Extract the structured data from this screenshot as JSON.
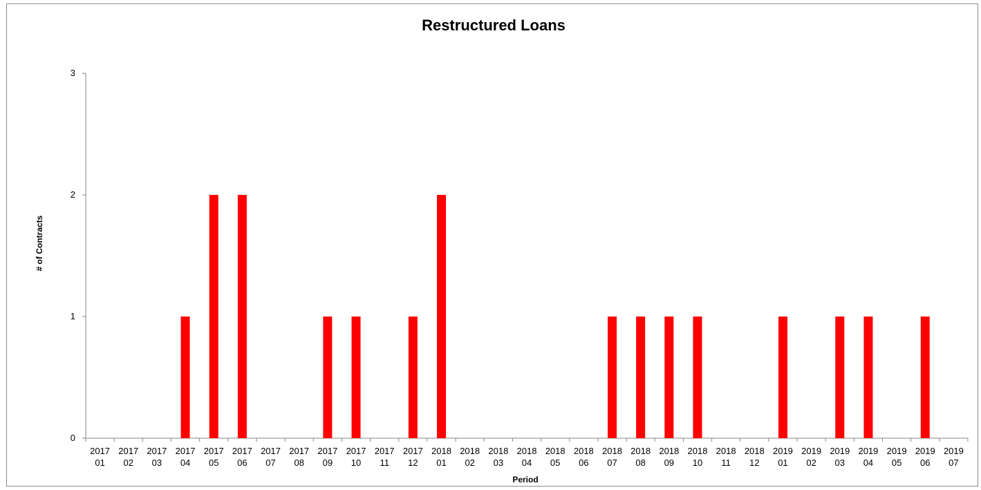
{
  "chart_data": {
    "type": "bar",
    "title": "Restructured Loans",
    "xlabel": "Period",
    "ylabel": "# of Contracts",
    "ylim": [
      0,
      3
    ],
    "yticks": [
      0,
      1,
      2,
      3
    ],
    "grid": false,
    "legend": "none",
    "bar_color": "#ff0000",
    "categories": [
      [
        "2017",
        "01"
      ],
      [
        "2017",
        "02"
      ],
      [
        "2017",
        "03"
      ],
      [
        "2017",
        "04"
      ],
      [
        "2017",
        "05"
      ],
      [
        "2017",
        "06"
      ],
      [
        "2017",
        "07"
      ],
      [
        "2017",
        "08"
      ],
      [
        "2017",
        "09"
      ],
      [
        "2017",
        "10"
      ],
      [
        "2017",
        "11"
      ],
      [
        "2017",
        "12"
      ],
      [
        "2018",
        "01"
      ],
      [
        "2018",
        "02"
      ],
      [
        "2018",
        "03"
      ],
      [
        "2018",
        "04"
      ],
      [
        "2018",
        "05"
      ],
      [
        "2018",
        "06"
      ],
      [
        "2018",
        "07"
      ],
      [
        "2018",
        "08"
      ],
      [
        "2018",
        "09"
      ],
      [
        "2018",
        "10"
      ],
      [
        "2018",
        "11"
      ],
      [
        "2018",
        "12"
      ],
      [
        "2019",
        "01"
      ],
      [
        "2019",
        "02"
      ],
      [
        "2019",
        "03"
      ],
      [
        "2019",
        "04"
      ],
      [
        "2019",
        "05"
      ],
      [
        "2019",
        "06"
      ],
      [
        "2019",
        "07"
      ]
    ],
    "values": [
      0,
      0,
      0,
      1,
      2,
      2,
      0,
      0,
      1,
      1,
      0,
      1,
      2,
      0,
      0,
      0,
      0,
      0,
      1,
      1,
      1,
      1,
      0,
      0,
      1,
      0,
      1,
      1,
      0,
      1,
      0
    ]
  }
}
